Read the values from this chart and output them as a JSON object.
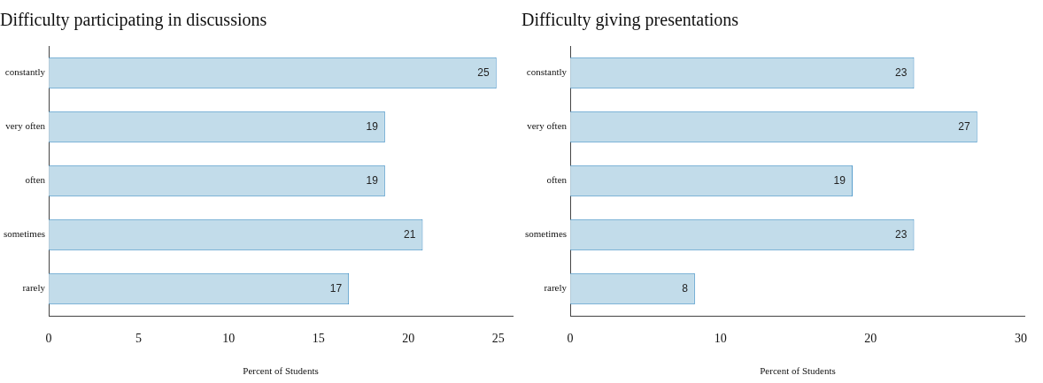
{
  "chart_data": [
    {
      "type": "bar",
      "orientation": "horizontal",
      "title": "Difficulty participating in discussions",
      "xlabel": "Percent of Students",
      "categories": [
        "constantly",
        "very often",
        "often",
        "sometimes",
        "rarely"
      ],
      "values": [
        24.9,
        18.7,
        18.7,
        20.8,
        16.7
      ],
      "value_labels": [
        "25",
        "19",
        "19",
        "21",
        "17"
      ],
      "color": "#c2dcea",
      "xlim": [
        0,
        25.8
      ],
      "xticks": [
        0,
        5,
        10,
        15,
        20,
        25
      ],
      "grid": false,
      "legend": false
    },
    {
      "type": "bar",
      "orientation": "horizontal",
      "title": "Difficulty giving presentations",
      "xlabel": "Percent of Students",
      "categories": [
        "constantly",
        "very often",
        "often",
        "sometimes",
        "rarely"
      ],
      "values": [
        22.9,
        27.1,
        18.8,
        22.9,
        8.3
      ],
      "value_labels": [
        "23",
        "27",
        "19",
        "23",
        "8"
      ],
      "color": "#c2dcea",
      "xlim": [
        0,
        30.3
      ],
      "xticks": [
        0,
        10,
        20,
        30
      ],
      "grid": false,
      "legend": false
    }
  ]
}
